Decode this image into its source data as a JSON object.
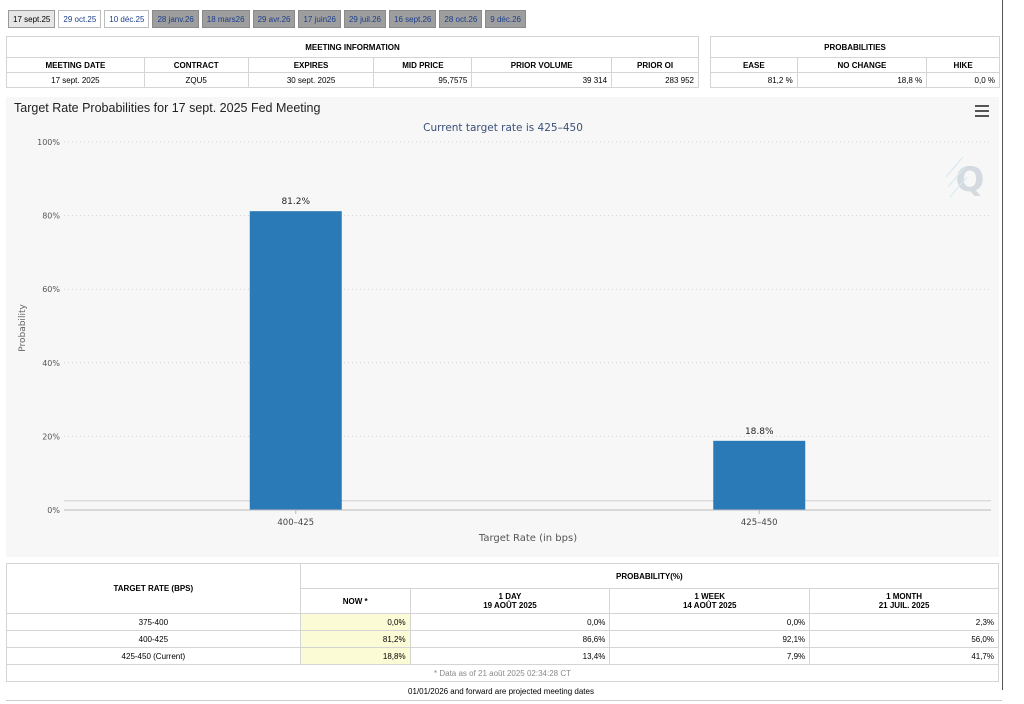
{
  "tabs": [
    {
      "label": "17 sept.25",
      "state": "active"
    },
    {
      "label": "29 oct.25",
      "state": "normal"
    },
    {
      "label": "10 déc.25",
      "state": "normal"
    },
    {
      "label": "28 janv.26",
      "state": "future"
    },
    {
      "label": "18 mars26",
      "state": "future"
    },
    {
      "label": "29 avr.26",
      "state": "future"
    },
    {
      "label": "17 juin26",
      "state": "future"
    },
    {
      "label": "29 juil.26",
      "state": "future"
    },
    {
      "label": "16 sept.26",
      "state": "future"
    },
    {
      "label": "28 oct.26",
      "state": "future"
    },
    {
      "label": "9 déc.26",
      "state": "future"
    }
  ],
  "meeting_info": {
    "caption": "MEETING INFORMATION",
    "headers": {
      "date": "MEETING DATE",
      "contract": "CONTRACT",
      "expires": "EXPIRES",
      "mid": "MID PRICE",
      "volume": "PRIOR VOLUME",
      "oi": "PRIOR OI"
    },
    "row": {
      "date": "17 sept. 2025",
      "contract": "ZQU5",
      "expires": "30 sept. 2025",
      "mid": "95,7575",
      "volume": "39 314",
      "oi": "283 952"
    }
  },
  "probabilities": {
    "caption": "PROBABILITIES",
    "headers": {
      "ease": "EASE",
      "no_change": "NO CHANGE",
      "hike": "HIKE"
    },
    "row": {
      "ease": "81,2 %",
      "no_change": "18,8 %",
      "hike": "0,0 %"
    }
  },
  "chart": {
    "title": "Target Rate Probabilities for 17 sept. 2025 Fed Meeting",
    "menu_icon": "hamburger-menu-icon",
    "watermark_icon": "q-logo-icon"
  },
  "chart_data": {
    "type": "bar",
    "title": "Target Rate Probabilities for 17 sept. 2025 Fed Meeting",
    "subtitle": "Current target rate is 425–450",
    "categories": [
      "400–425",
      "425–450"
    ],
    "values": [
      81.2,
      18.8
    ],
    "data_labels": [
      "81.2%",
      "18.8%"
    ],
    "xlabel": "Target Rate (in bps)",
    "ylabel": "Probability",
    "ylim": [
      0,
      100
    ],
    "yticks": [
      0,
      20,
      40,
      60,
      80,
      100
    ],
    "ytick_labels": [
      "0%",
      "20%",
      "40%",
      "60%",
      "80%",
      "100%"
    ],
    "grid": true,
    "bar_color": "#2a7ab8"
  },
  "prob_table": {
    "header_rate": "TARGET RATE (BPS)",
    "header_prob": "PROBABILITY(%)",
    "col_now": "NOW *",
    "col_day": "1 DAY",
    "col_day_date": "19 AOÛT 2025",
    "col_week": "1 WEEK",
    "col_week_date": "14 AOÛT 2025",
    "col_month": "1 MONTH",
    "col_month_date": "21 JUIL. 2025",
    "rows": [
      {
        "rate": "375-400",
        "now": "0,0%",
        "day": "0,0%",
        "week": "0,0%",
        "month": "2,3%"
      },
      {
        "rate": "400-425",
        "now": "81,2%",
        "day": "86,6%",
        "week": "92,1%",
        "month": "56,0%"
      },
      {
        "rate": "425-450 (Current)",
        "now": "18,8%",
        "day": "13,4%",
        "week": "7,9%",
        "month": "41,7%"
      }
    ],
    "data_as_of": "* Data as of 21 août 2025 02:34:28 CT"
  },
  "footnote": "01/01/2026 and forward are projected meeting dates"
}
